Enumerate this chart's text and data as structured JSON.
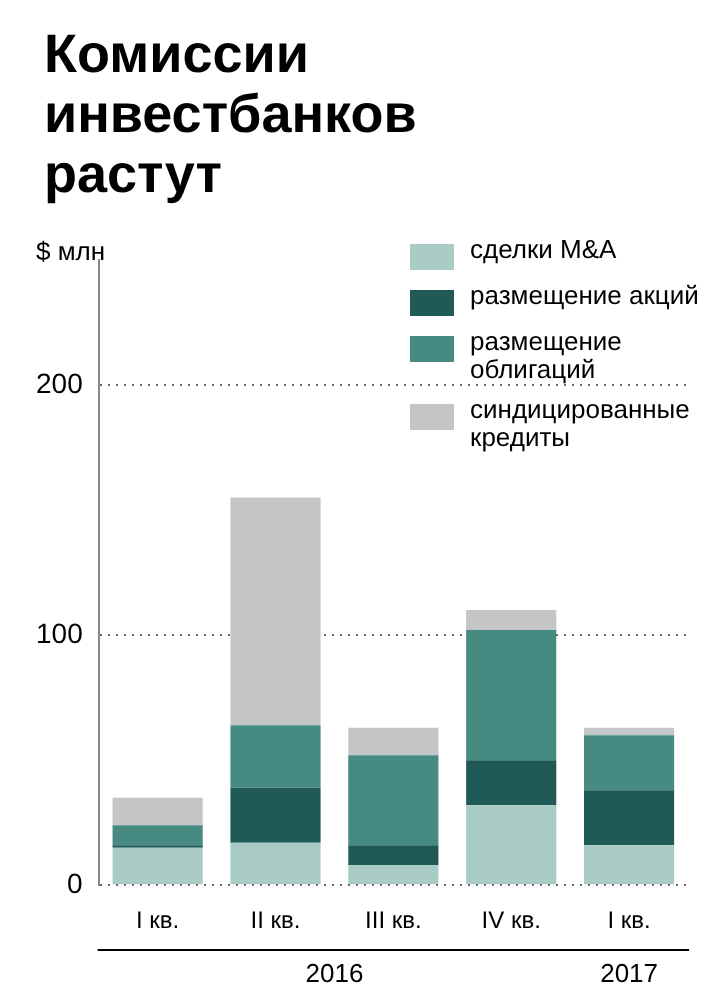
{
  "chart_data": {
    "type": "bar",
    "title": "Комиссии инвестбанков растут",
    "ylabel": "$ млн",
    "categories": [
      "I кв.",
      "II кв.",
      "III кв.",
      "IV кв.",
      "I кв."
    ],
    "series": [
      {
        "name": "сделки M&A",
        "color": "#a8cbc6",
        "values": [
          15,
          17,
          8,
          32,
          16
        ]
      },
      {
        "name": "размещение акций",
        "color": "#1f5a56",
        "values": [
          1,
          22,
          8,
          18,
          22
        ]
      },
      {
        "name": "размещение облигаций",
        "color": "#468a82",
        "values": [
          8,
          25,
          36,
          52,
          22
        ]
      },
      {
        "name": "синдицированные кредиты",
        "color": "#c4c5c7",
        "values": [
          11,
          91,
          11,
          8,
          3
        ]
      }
    ],
    "stacked": true,
    "ylim": [
      0,
      250
    ],
    "yticks": [
      0,
      100,
      200
    ],
    "grid": "y",
    "legend": "top right",
    "annotations": [
      "2016",
      "2017"
    ]
  }
}
